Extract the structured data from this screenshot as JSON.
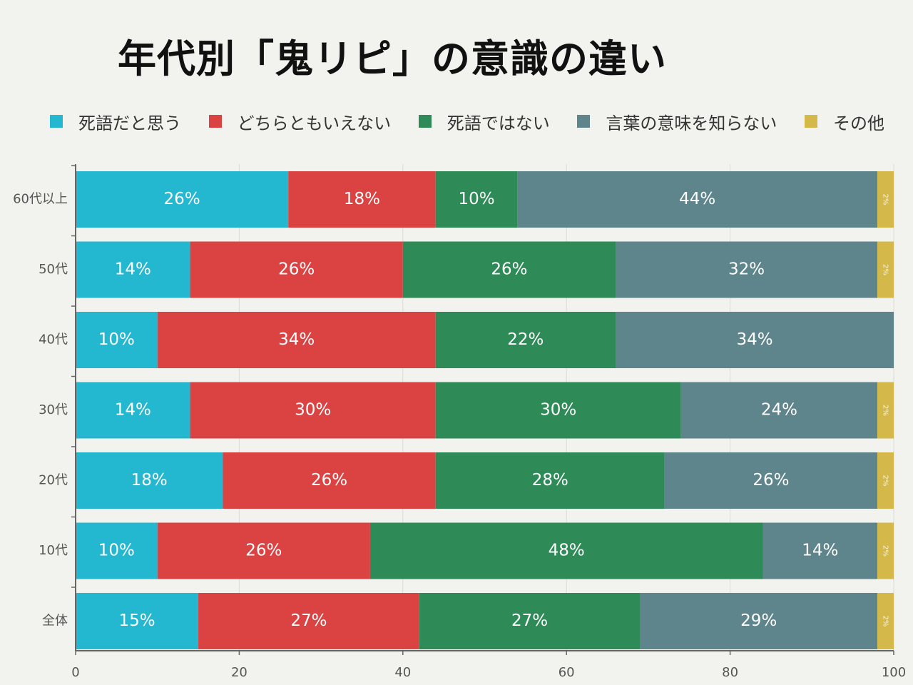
{
  "chart_data": {
    "type": "bar",
    "orientation": "horizontal",
    "stacked": true,
    "title": "年代別「鬼リピ」の意識の違い",
    "categories": [
      "60代以上",
      "50代",
      "40代",
      "30代",
      "20代",
      "10代",
      "全体"
    ],
    "series": [
      {
        "name": "死語だと思う",
        "color": "#23b8d0",
        "values": [
          26,
          14,
          10,
          14,
          18,
          10,
          15
        ],
        "labels": [
          "26%",
          "14%",
          "10%",
          "14%",
          "18%",
          "10%",
          "15%"
        ]
      },
      {
        "name": "どちらともいえない",
        "color": "#db4343",
        "values": [
          18,
          26,
          34,
          30,
          26,
          26,
          27
        ],
        "labels": [
          "18%",
          "26%",
          "34%",
          "30%",
          "26%",
          "26%",
          "27%"
        ]
      },
      {
        "name": "死語ではない",
        "color": "#2e8b57",
        "values": [
          10,
          26,
          22,
          30,
          28,
          48,
          27
        ],
        "labels": [
          "10%",
          "26%",
          "22%",
          "30%",
          "28%",
          "48%",
          "27%"
        ]
      },
      {
        "name": "言葉の意味を知らない",
        "color": "#5f858c",
        "values": [
          44,
          32,
          34,
          24,
          26,
          14,
          29
        ],
        "labels": [
          "44%",
          "32%",
          "34%",
          "24%",
          "26%",
          "14%",
          "29%"
        ]
      },
      {
        "name": "その他",
        "color": "#d4b94a",
        "values": [
          2,
          2,
          0,
          2,
          2,
          2,
          2
        ],
        "labels": [
          "2%",
          "2%",
          "",
          "2%",
          "2%",
          "2%",
          "2%"
        ]
      }
    ],
    "xlim": [
      0,
      100
    ],
    "xticks": [
      "0",
      "20",
      "40",
      "60",
      "80",
      "100"
    ],
    "grid": true,
    "legend": "top"
  }
}
